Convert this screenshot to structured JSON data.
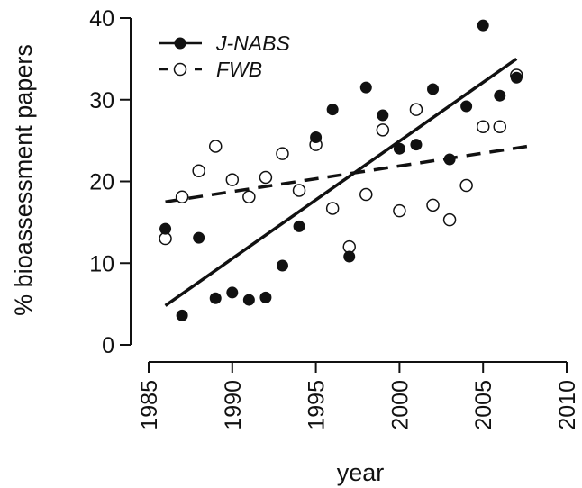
{
  "chart_data": {
    "type": "scatter",
    "xlabel": "year",
    "ylabel": "% bioassessment papers",
    "xlim": [
      1985,
      2010
    ],
    "ylim": [
      0,
      40
    ],
    "xticks": [
      "1985",
      "1990",
      "1995",
      "2000",
      "2005",
      "2010"
    ],
    "yticks": [
      "0",
      "10",
      "20",
      "30",
      "40"
    ],
    "grid": false,
    "legend_position": "top-left",
    "series": [
      {
        "name": "J-NABS",
        "marker": "filled-circle",
        "line_style": "solid",
        "color": "#111111",
        "points": [
          [
            1986,
            14.2
          ],
          [
            1987,
            3.6
          ],
          [
            1988,
            13.1
          ],
          [
            1989,
            5.7
          ],
          [
            1990,
            6.4
          ],
          [
            1991,
            5.5
          ],
          [
            1992,
            5.8
          ],
          [
            1993,
            9.7
          ],
          [
            1994,
            14.5
          ],
          [
            1995,
            25.4
          ],
          [
            1996,
            28.8
          ],
          [
            1997,
            10.8
          ],
          [
            1998,
            31.5
          ],
          [
            1999,
            28.1
          ],
          [
            2000,
            24.0
          ],
          [
            2001,
            24.5
          ],
          [
            2002,
            31.3
          ],
          [
            2003,
            22.7
          ],
          [
            2004,
            29.2
          ],
          [
            2005,
            39.1
          ],
          [
            2006,
            30.5
          ],
          [
            2007,
            32.7
          ]
        ],
        "trend": [
          [
            1986,
            4.8
          ],
          [
            2007,
            35.0
          ]
        ]
      },
      {
        "name": "FWB",
        "marker": "open-circle",
        "line_style": "dashed",
        "color": "#111111",
        "points": [
          [
            1986,
            13.0
          ],
          [
            1987,
            18.1
          ],
          [
            1988,
            21.3
          ],
          [
            1989,
            24.3
          ],
          [
            1990,
            20.2
          ],
          [
            1991,
            18.1
          ],
          [
            1992,
            20.5
          ],
          [
            1993,
            23.4
          ],
          [
            1994,
            18.9
          ],
          [
            1995,
            24.5
          ],
          [
            1996,
            16.7
          ],
          [
            1997,
            12.0
          ],
          [
            1998,
            18.4
          ],
          [
            1999,
            26.3
          ],
          [
            2000,
            16.4
          ],
          [
            2001,
            28.8
          ],
          [
            2002,
            17.1
          ],
          [
            2003,
            15.3
          ],
          [
            2004,
            19.5
          ],
          [
            2005,
            26.7
          ],
          [
            2006,
            26.7
          ],
          [
            2007,
            33.0
          ]
        ],
        "trend": [
          [
            1986,
            17.5
          ],
          [
            2008,
            24.4
          ]
        ]
      }
    ]
  }
}
